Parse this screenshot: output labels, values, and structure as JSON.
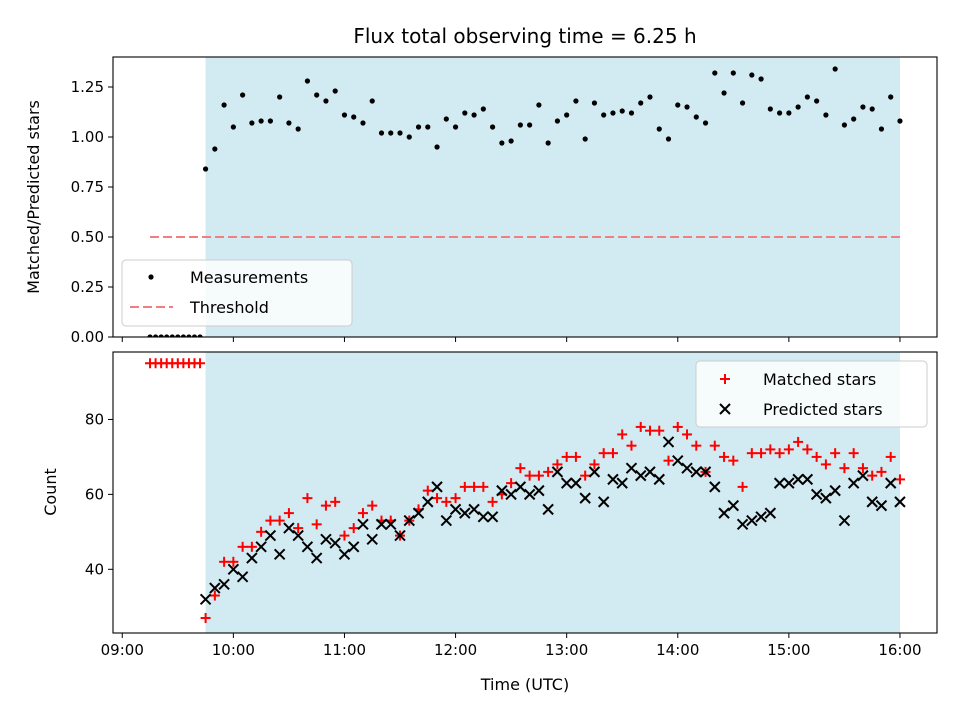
{
  "chart_data": [
    {
      "type": "scatter",
      "title": "Flux total observing time = 6.25 h",
      "ylabel": "Matched/Predicted stars",
      "xlim": [
        "08:55",
        "16:20"
      ],
      "ylim": [
        0,
        1.4
      ],
      "xticks": [
        "09:00",
        "10:00",
        "11:00",
        "12:00",
        "13:00",
        "14:00",
        "15:00",
        "16:00"
      ],
      "yticks": [
        "0.00",
        "0.25",
        "0.50",
        "0.75",
        "1.00",
        "1.25"
      ],
      "yticks_values": [
        0,
        0.25,
        0.5,
        0.75,
        1.0,
        1.25
      ],
      "shaded_region": {
        "from": "09:45",
        "to": "16:00",
        "color": "#add8e6"
      },
      "legend": {
        "position": "lower-left",
        "entries": [
          "Measurements",
          "Threshold"
        ]
      },
      "threshold": {
        "name": "Threshold",
        "value": 0.5,
        "from": "09:15",
        "to": "16:00",
        "color": "#f08080"
      },
      "series": [
        {
          "name": "Measurements",
          "color": "#000000",
          "x": [
            "09:15",
            "09:18",
            "09:21",
            "09:24",
            "09:27",
            "09:30",
            "09:33",
            "09:36",
            "09:39",
            "09:42",
            "09:45",
            "09:50",
            "09:55",
            "10:00",
            "10:05",
            "10:10",
            "10:15",
            "10:20",
            "10:25",
            "10:30",
            "10:35",
            "10:40",
            "10:45",
            "10:50",
            "10:55",
            "11:00",
            "11:05",
            "11:10",
            "11:15",
            "11:20",
            "11:25",
            "11:30",
            "11:35",
            "11:40",
            "11:45",
            "11:50",
            "11:55",
            "12:00",
            "12:05",
            "12:10",
            "12:15",
            "12:20",
            "12:25",
            "12:30",
            "12:35",
            "12:40",
            "12:45",
            "12:50",
            "12:55",
            "13:00",
            "13:05",
            "13:10",
            "13:15",
            "13:20",
            "13:25",
            "13:30",
            "13:35",
            "13:40",
            "13:45",
            "13:50",
            "13:55",
            "14:00",
            "14:05",
            "14:10",
            "14:15",
            "14:20",
            "14:25",
            "14:30",
            "14:35",
            "14:40",
            "14:45",
            "14:50",
            "14:55",
            "15:00",
            "15:05",
            "15:10",
            "15:15",
            "15:20",
            "15:25",
            "15:30",
            "15:35",
            "15:40",
            "15:45",
            "15:50",
            "15:55",
            "16:00"
          ],
          "y": [
            0,
            0,
            0,
            0,
            0,
            0,
            0,
            0,
            0,
            0,
            0.84,
            0.94,
            1.16,
            1.05,
            1.21,
            1.07,
            1.08,
            1.08,
            1.2,
            1.07,
            1.04,
            1.28,
            1.21,
            1.18,
            1.23,
            1.11,
            1.1,
            1.07,
            1.18,
            1.02,
            1.02,
            1.02,
            1.0,
            1.05,
            1.05,
            0.95,
            1.09,
            1.05,
            1.12,
            1.11,
            1.14,
            1.05,
            0.97,
            0.98,
            1.06,
            1.06,
            1.16,
            0.97,
            1.08,
            1.11,
            1.18,
            0.99,
            1.17,
            1.11,
            1.12,
            1.13,
            1.12,
            1.17,
            1.2,
            1.04,
            0.99,
            1.16,
            1.15,
            1.1,
            1.07,
            1.32,
            1.22,
            1.32,
            1.17,
            1.31,
            1.29,
            1.14,
            1.12,
            1.12,
            1.15,
            1.2,
            1.18,
            1.11,
            1.34,
            1.06,
            1.09,
            1.15,
            1.14,
            1.04,
            1.2,
            1.08
          ]
        }
      ]
    },
    {
      "type": "scatter",
      "xlabel": "Time (UTC)",
      "ylabel": "Count",
      "xlim": [
        "08:55",
        "16:20"
      ],
      "ylim": [
        23,
        98
      ],
      "xticks": [
        "09:00",
        "10:00",
        "11:00",
        "12:00",
        "13:00",
        "14:00",
        "15:00",
        "16:00"
      ],
      "yticks": [
        "40",
        "60",
        "80"
      ],
      "yticks_values": [
        40,
        60,
        80
      ],
      "shaded_region": {
        "from": "09:45",
        "to": "16:00",
        "color": "#add8e6"
      },
      "legend": {
        "position": "upper-right",
        "entries": [
          "Matched stars",
          "Predicted stars"
        ]
      },
      "series": [
        {
          "name": "Matched stars",
          "marker": "plus",
          "color": "#ff0000",
          "x": [
            "09:15",
            "09:18",
            "09:21",
            "09:24",
            "09:27",
            "09:30",
            "09:33",
            "09:36",
            "09:39",
            "09:42",
            "09:45",
            "09:50",
            "09:55",
            "10:00",
            "10:05",
            "10:10",
            "10:15",
            "10:20",
            "10:25",
            "10:30",
            "10:35",
            "10:40",
            "10:45",
            "10:50",
            "10:55",
            "11:00",
            "11:05",
            "11:10",
            "11:15",
            "11:20",
            "11:25",
            "11:30",
            "11:35",
            "11:40",
            "11:45",
            "11:50",
            "11:55",
            "12:00",
            "12:05",
            "12:10",
            "12:15",
            "12:20",
            "12:25",
            "12:30",
            "12:35",
            "12:40",
            "12:45",
            "12:50",
            "12:55",
            "13:00",
            "13:05",
            "13:10",
            "13:15",
            "13:20",
            "13:25",
            "13:30",
            "13:35",
            "13:40",
            "13:45",
            "13:50",
            "13:55",
            "14:00",
            "14:05",
            "14:10",
            "14:15",
            "14:20",
            "14:25",
            "14:30",
            "14:35",
            "14:40",
            "14:45",
            "14:50",
            "14:55",
            "15:00",
            "15:05",
            "15:10",
            "15:15",
            "15:20",
            "15:25",
            "15:30",
            "15:35",
            "15:40",
            "15:45",
            "15:50",
            "15:55",
            "16:00"
          ],
          "y": [
            95,
            95,
            95,
            95,
            95,
            95,
            95,
            95,
            95,
            95,
            27,
            33,
            42,
            42,
            46,
            46,
            50,
            53,
            53,
            55,
            51,
            59,
            52,
            57,
            58,
            49,
            51,
            55,
            57,
            53,
            53,
            49,
            53,
            56,
            61,
            59,
            58,
            59,
            62,
            62,
            62,
            58,
            60,
            63,
            67,
            65,
            65,
            66,
            68,
            70,
            70,
            65,
            68,
            71,
            71,
            76,
            73,
            78,
            77,
            77,
            69,
            78,
            76,
            73,
            66,
            73,
            70,
            69,
            62,
            71,
            71,
            72,
            71,
            72,
            74,
            72,
            70,
            68,
            71,
            67,
            71,
            67,
            65,
            66,
            70,
            64
          ]
        },
        {
          "name": "Predicted stars",
          "marker": "x",
          "color": "#000000",
          "x": [
            "09:45",
            "09:50",
            "09:55",
            "10:00",
            "10:05",
            "10:10",
            "10:15",
            "10:20",
            "10:25",
            "10:30",
            "10:35",
            "10:40",
            "10:45",
            "10:50",
            "10:55",
            "11:00",
            "11:05",
            "11:10",
            "11:15",
            "11:20",
            "11:25",
            "11:30",
            "11:35",
            "11:40",
            "11:45",
            "11:50",
            "11:55",
            "12:00",
            "12:05",
            "12:10",
            "12:15",
            "12:20",
            "12:25",
            "12:30",
            "12:35",
            "12:40",
            "12:45",
            "12:50",
            "12:55",
            "13:00",
            "13:05",
            "13:10",
            "13:15",
            "13:20",
            "13:25",
            "13:30",
            "13:35",
            "13:40",
            "13:45",
            "13:50",
            "13:55",
            "14:00",
            "14:05",
            "14:10",
            "14:15",
            "14:20",
            "14:25",
            "14:30",
            "14:35",
            "14:40",
            "14:45",
            "14:50",
            "14:55",
            "15:00",
            "15:05",
            "15:10",
            "15:15",
            "15:20",
            "15:25",
            "15:30",
            "15:35",
            "15:40",
            "15:45",
            "15:50",
            "15:55",
            "16:00"
          ],
          "y": [
            32,
            35,
            36,
            40,
            38,
            43,
            46,
            49,
            44,
            51,
            49,
            46,
            43,
            48,
            47,
            44,
            46,
            52,
            48,
            52,
            52,
            49,
            53,
            55,
            58,
            62,
            53,
            56,
            55,
            56,
            54,
            54,
            61,
            60,
            62,
            60,
            61,
            56,
            66,
            63,
            63,
            59,
            66,
            58,
            64,
            63,
            67,
            65,
            66,
            64,
            74,
            69,
            67,
            66,
            66,
            62,
            55,
            57,
            52,
            53,
            54,
            55,
            63,
            63,
            64,
            64,
            60,
            59,
            61,
            53,
            63,
            65,
            58,
            57,
            63,
            58
          ]
        }
      ]
    }
  ]
}
